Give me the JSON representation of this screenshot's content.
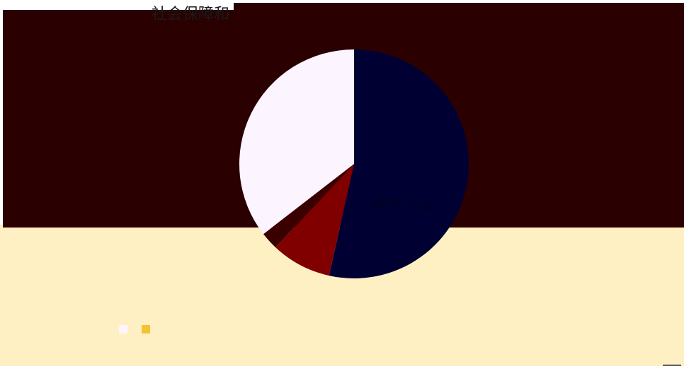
{
  "chart_data": {
    "type": "pie",
    "title": "社会保障和",
    "slices": [
      {
        "value": 53.5,
        "color": "#000033",
        "label": "教育支出"
      },
      {
        "value": 8.5,
        "color": "#800000",
        "label": ""
      },
      {
        "value": 2.5,
        "color": "#3a0000",
        "label": ""
      },
      {
        "value": 35.5,
        "color": "#fcf4ff",
        "label": ""
      }
    ],
    "legend": {
      "placement": "bottom",
      "entries": [
        {
          "label": "",
          "color": "#fcf4ff"
        },
        {
          "label": "",
          "color": "#f4c430"
        }
      ]
    }
  },
  "colors": {
    "background_top": "#2a0000",
    "background_bottom": "#fff0c4"
  }
}
